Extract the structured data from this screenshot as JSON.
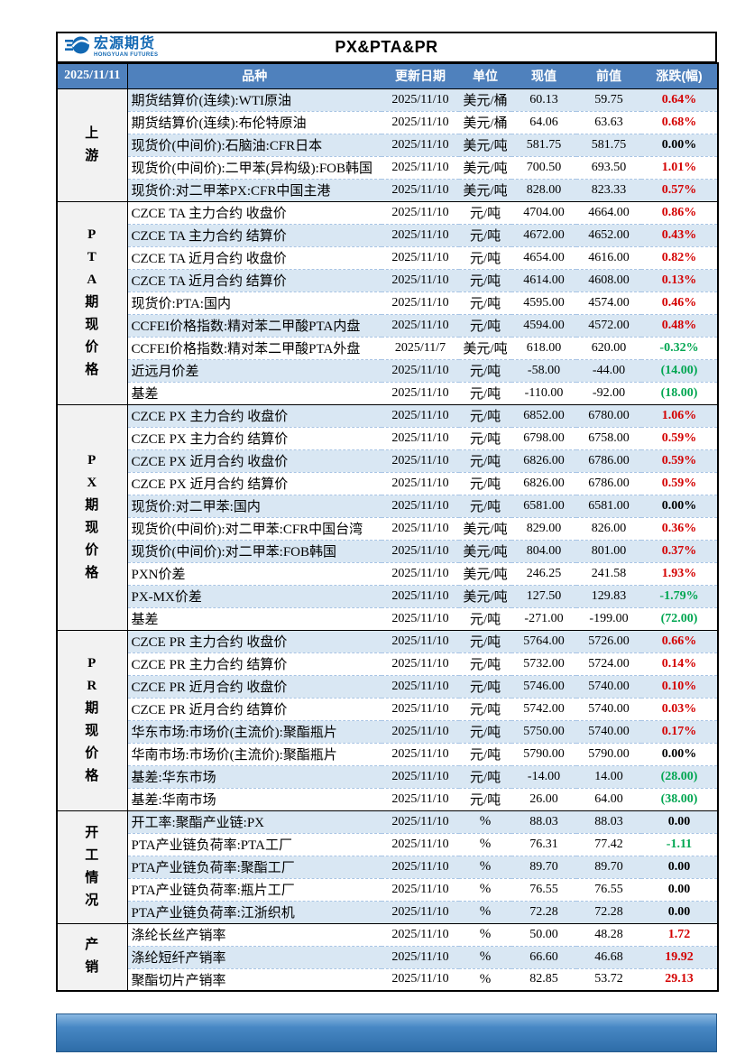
{
  "page": {
    "report_date": "2025/11/11",
    "title": "PX&PTA&PR",
    "logo": {
      "icon": "hongyuan-globe-swoosh-icon",
      "name": "宏源期货",
      "subtitle": "HONGYUAN FUTURES"
    }
  },
  "colors": {
    "header_blue": "#4f81bd",
    "stripe_blue": "#d9e7f3",
    "section_gray": "#f2f2f2",
    "up_red": "#d40000",
    "down_green": "#00a651",
    "logo_blue": "#1268b3",
    "bottom_bar_blue": "#2e6da8"
  },
  "table": {
    "headers": {
      "variety": "品种",
      "date": "更新日期",
      "unit": "单位",
      "current": "现值",
      "previous": "前值",
      "change": "涨跌(幅)"
    },
    "sections": [
      {
        "label": "上\n游",
        "rows": [
          {
            "name": "期货结算价(连续):WTI原油",
            "date": "2025/11/10",
            "unit": "美元/桶",
            "current": "60.13",
            "previous": "59.75",
            "change": "0.64%",
            "trend": "up"
          },
          {
            "name": "期货结算价(连续):布伦特原油",
            "date": "2025/11/10",
            "unit": "美元/桶",
            "current": "64.06",
            "previous": "63.63",
            "change": "0.68%",
            "trend": "up"
          },
          {
            "name": "现货价(中间价):石脑油:CFR日本",
            "date": "2025/11/10",
            "unit": "美元/吨",
            "current": "581.75",
            "previous": "581.75",
            "change": "0.00%",
            "trend": "flat"
          },
          {
            "name": "现货价(中间价):二甲苯(异构级):FOB韩国",
            "date": "2025/11/10",
            "unit": "美元/吨",
            "current": "700.50",
            "previous": "693.50",
            "change": "1.01%",
            "trend": "up"
          },
          {
            "name": "现货价:对二甲苯PX:CFR中国主港",
            "date": "2025/11/10",
            "unit": "美元/吨",
            "current": "828.00",
            "previous": "823.33",
            "change": "0.57%",
            "trend": "up"
          }
        ]
      },
      {
        "label": "P\nT\nA\n期\n现\n价\n格",
        "rows": [
          {
            "name": "CZCE TA 主力合约 收盘价",
            "date": "2025/11/10",
            "unit": "元/吨",
            "current": "4704.00",
            "previous": "4664.00",
            "change": "0.86%",
            "trend": "up"
          },
          {
            "name": "CZCE TA 主力合约 结算价",
            "date": "2025/11/10",
            "unit": "元/吨",
            "current": "4672.00",
            "previous": "4652.00",
            "change": "0.43%",
            "trend": "up"
          },
          {
            "name": "CZCE TA 近月合约 收盘价",
            "date": "2025/11/10",
            "unit": "元/吨",
            "current": "4654.00",
            "previous": "4616.00",
            "change": "0.82%",
            "trend": "up"
          },
          {
            "name": "CZCE TA 近月合约 结算价",
            "date": "2025/11/10",
            "unit": "元/吨",
            "current": "4614.00",
            "previous": "4608.00",
            "change": "0.13%",
            "trend": "up"
          },
          {
            "name": "现货价:PTA:国内",
            "date": "2025/11/10",
            "unit": "元/吨",
            "current": "4595.00",
            "previous": "4574.00",
            "change": "0.46%",
            "trend": "up"
          },
          {
            "name": "CCFEI价格指数:精对苯二甲酸PTA内盘",
            "date": "2025/11/10",
            "unit": "元/吨",
            "current": "4594.00",
            "previous": "4572.00",
            "change": "0.48%",
            "trend": "up"
          },
          {
            "name": "CCFEI价格指数:精对苯二甲酸PTA外盘",
            "date": "2025/11/7",
            "unit": "美元/吨",
            "current": "618.00",
            "previous": "620.00",
            "change": "-0.32%",
            "trend": "down"
          },
          {
            "name": "近远月价差",
            "date": "2025/11/10",
            "unit": "元/吨",
            "current": "-58.00",
            "previous": "-44.00",
            "change": "(14.00)",
            "trend": "down"
          },
          {
            "name": "基差",
            "date": "2025/11/10",
            "unit": "元/吨",
            "current": "-110.00",
            "previous": "-92.00",
            "change": "(18.00)",
            "trend": "down"
          }
        ]
      },
      {
        "label": "P\nX\n期\n现\n价\n格",
        "rows": [
          {
            "name": "CZCE PX 主力合约 收盘价",
            "date": "2025/11/10",
            "unit": "元/吨",
            "current": "6852.00",
            "previous": "6780.00",
            "change": "1.06%",
            "trend": "up"
          },
          {
            "name": "CZCE PX 主力合约 结算价",
            "date": "2025/11/10",
            "unit": "元/吨",
            "current": "6798.00",
            "previous": "6758.00",
            "change": "0.59%",
            "trend": "up"
          },
          {
            "name": "CZCE PX 近月合约 收盘价",
            "date": "2025/11/10",
            "unit": "元/吨",
            "current": "6826.00",
            "previous": "6786.00",
            "change": "0.59%",
            "trend": "up"
          },
          {
            "name": "CZCE PX 近月合约 结算价",
            "date": "2025/11/10",
            "unit": "元/吨",
            "current": "6826.00",
            "previous": "6786.00",
            "change": "0.59%",
            "trend": "up"
          },
          {
            "name": "现货价:对二甲苯:国内",
            "date": "2025/11/10",
            "unit": "元/吨",
            "current": "6581.00",
            "previous": "6581.00",
            "change": "0.00%",
            "trend": "flat"
          },
          {
            "name": "现货价(中间价):对二甲苯:CFR中国台湾",
            "date": "2025/11/10",
            "unit": "美元/吨",
            "current": "829.00",
            "previous": "826.00",
            "change": "0.36%",
            "trend": "up"
          },
          {
            "name": "现货价(中间价):对二甲苯:FOB韩国",
            "date": "2025/11/10",
            "unit": "美元/吨",
            "current": "804.00",
            "previous": "801.00",
            "change": "0.37%",
            "trend": "up"
          },
          {
            "name": "PXN价差",
            "date": "2025/11/10",
            "unit": "美元/吨",
            "current": "246.25",
            "previous": "241.58",
            "change": "1.93%",
            "trend": "up"
          },
          {
            "name": "PX-MX价差",
            "date": "2025/11/10",
            "unit": "美元/吨",
            "current": "127.50",
            "previous": "129.83",
            "change": "-1.79%",
            "trend": "down"
          },
          {
            "name": "基差",
            "date": "2025/11/10",
            "unit": "元/吨",
            "current": "-271.00",
            "previous": "-199.00",
            "change": "(72.00)",
            "trend": "down"
          }
        ]
      },
      {
        "label": "P\nR\n期\n现\n价\n格",
        "rows": [
          {
            "name": "CZCE PR 主力合约 收盘价",
            "date": "2025/11/10",
            "unit": "元/吨",
            "current": "5764.00",
            "previous": "5726.00",
            "change": "0.66%",
            "trend": "up"
          },
          {
            "name": "CZCE PR 主力合约 结算价",
            "date": "2025/11/10",
            "unit": "元/吨",
            "current": "5732.00",
            "previous": "5724.00",
            "change": "0.14%",
            "trend": "up"
          },
          {
            "name": "CZCE PR 近月合约 收盘价",
            "date": "2025/11/10",
            "unit": "元/吨",
            "current": "5746.00",
            "previous": "5740.00",
            "change": "0.10%",
            "trend": "up"
          },
          {
            "name": "CZCE PR 近月合约 结算价",
            "date": "2025/11/10",
            "unit": "元/吨",
            "current": "5742.00",
            "previous": "5740.00",
            "change": "0.03%",
            "trend": "up"
          },
          {
            "name": "华东市场:市场价(主流价):聚酯瓶片",
            "date": "2025/11/10",
            "unit": "元/吨",
            "current": "5750.00",
            "previous": "5740.00",
            "change": "0.17%",
            "trend": "up"
          },
          {
            "name": "华南市场:市场价(主流价):聚酯瓶片",
            "date": "2025/11/10",
            "unit": "元/吨",
            "current": "5790.00",
            "previous": "5790.00",
            "change": "0.00%",
            "trend": "flat"
          },
          {
            "name": "基差:华东市场",
            "date": "2025/11/10",
            "unit": "元/吨",
            "current": "-14.00",
            "previous": "14.00",
            "change": "(28.00)",
            "trend": "down"
          },
          {
            "name": "基差:华南市场",
            "date": "2025/11/10",
            "unit": "元/吨",
            "current": "26.00",
            "previous": "64.00",
            "change": "(38.00)",
            "trend": "down"
          }
        ]
      },
      {
        "label": "开\n工\n情\n况",
        "rows": [
          {
            "name": "开工率:聚酯产业链:PX",
            "date": "2025/11/10",
            "unit": "%",
            "current": "88.03",
            "previous": "88.03",
            "change": "0.00",
            "trend": "flat"
          },
          {
            "name": "PTA产业链负荷率:PTA工厂",
            "date": "2025/11/10",
            "unit": "%",
            "current": "76.31",
            "previous": "77.42",
            "change": "-1.11",
            "trend": "down"
          },
          {
            "name": "PTA产业链负荷率:聚酯工厂",
            "date": "2025/11/10",
            "unit": "%",
            "current": "89.70",
            "previous": "89.70",
            "change": "0.00",
            "trend": "flat"
          },
          {
            "name": "PTA产业链负荷率:瓶片工厂",
            "date": "2025/11/10",
            "unit": "%",
            "current": "76.55",
            "previous": "76.55",
            "change": "0.00",
            "trend": "flat"
          },
          {
            "name": "PTA产业链负荷率:江浙织机",
            "date": "2025/11/10",
            "unit": "%",
            "current": "72.28",
            "previous": "72.28",
            "change": "0.00",
            "trend": "flat"
          }
        ]
      },
      {
        "label": "产\n销",
        "rows": [
          {
            "name": "涤纶长丝产销率",
            "date": "2025/11/10",
            "unit": "%",
            "current": "50.00",
            "previous": "48.28",
            "change": "1.72",
            "trend": "up"
          },
          {
            "name": "涤纶短纤产销率",
            "date": "2025/11/10",
            "unit": "%",
            "current": "66.60",
            "previous": "46.68",
            "change": "19.92",
            "trend": "up"
          },
          {
            "name": "聚酯切片产销率",
            "date": "2025/11/10",
            "unit": "%",
            "current": "82.85",
            "previous": "53.72",
            "change": "29.13",
            "trend": "up"
          }
        ]
      }
    ]
  }
}
